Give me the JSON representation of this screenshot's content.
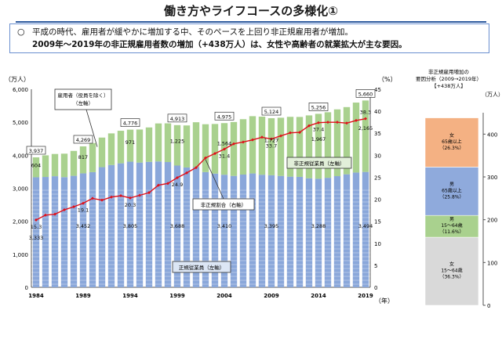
{
  "page": {
    "title": "働き方やライフコースの多様化①",
    "summary_bullet": "○",
    "summary_line1": "平成の時代、雇用者が緩やかに増加する中、そのペースを上回り非正規雇用者が増加。",
    "summary_line2": "2009年～2019年の非正規雇用者数の増加（+438万人）は、女性や高齢者の就業拡大が主な要因。"
  },
  "chart_data": [
    {
      "type": "bar",
      "stacked": true,
      "secondary_type": "line",
      "unit_left": "（万人）",
      "unit_right": "（%）",
      "year_unit": "（年）",
      "x": [
        1984,
        1985,
        1986,
        1987,
        1988,
        1989,
        1990,
        1991,
        1992,
        1993,
        1994,
        1995,
        1996,
        1997,
        1998,
        1999,
        2000,
        2001,
        2002,
        2003,
        2004,
        2005,
        2006,
        2007,
        2008,
        2009,
        2010,
        2011,
        2012,
        2013,
        2014,
        2015,
        2016,
        2017,
        2018,
        2019
      ],
      "x_tick_labels": [
        "1984",
        "1989",
        "1994",
        "1999",
        "2004",
        "2009",
        "2014",
        "2019"
      ],
      "x_tick_years": [
        1984,
        1989,
        1994,
        1999,
        2004,
        2009,
        2014,
        2019
      ],
      "y_left_ticks": [
        "0",
        "1,000",
        "2,000",
        "3,000",
        "4,000",
        "5,000",
        "6,000"
      ],
      "y_right_ticks": [
        "0",
        "5",
        "10",
        "15",
        "20",
        "25",
        "30",
        "35",
        "40",
        "45"
      ],
      "ylim_left": [
        0,
        6000
      ],
      "ylim_right": [
        0,
        45
      ],
      "grid": false,
      "series": [
        {
          "name": "正規従業員（左軸）",
          "color": "#8aa7da",
          "values": [
            3333,
            3343,
            3365,
            3337,
            3377,
            3452,
            3488,
            3639,
            3705,
            3756,
            3805,
            3779,
            3800,
            3812,
            3794,
            3688,
            3630,
            3640,
            3489,
            3444,
            3410,
            3374,
            3415,
            3449,
            3410,
            3395,
            3374,
            3352,
            3345,
            3302,
            3288,
            3317,
            3367,
            3423,
            3476,
            3494
          ]
        },
        {
          "name": "非正規従業員（左軸）",
          "color": "#a9d18e",
          "values": [
            604,
            655,
            674,
            711,
            755,
            817,
            881,
            897,
            958,
            986,
            971,
            1001,
            1043,
            1152,
            1173,
            1225,
            1273,
            1360,
            1451,
            1504,
            1564,
            1634,
            1678,
            1735,
            1760,
            1727,
            1763,
            1812,
            1816,
            1906,
            1967,
            1986,
            2023,
            2036,
            2120,
            2165
          ]
        }
      ],
      "line_series": {
        "name": "非正規割合（右軸）",
        "color": "#e0101a",
        "values": [
          15.3,
          16.4,
          16.6,
          17.6,
          18.3,
          19.1,
          20.2,
          19.8,
          20.5,
          20.8,
          20.3,
          20.9,
          21.5,
          23.2,
          23.6,
          24.9,
          26.0,
          27.2,
          29.4,
          30.4,
          31.4,
          32.6,
          33.0,
          33.5,
          34.1,
          33.7,
          34.4,
          35.1,
          35.2,
          36.7,
          37.4,
          37.5,
          37.5,
          37.3,
          37.9,
          38.3
        ]
      },
      "total_labels": [
        {
          "year": 1984,
          "text": "3,937"
        },
        {
          "year": 1989,
          "text": "4,269"
        },
        {
          "year": 1994,
          "text": "4,776"
        },
        {
          "year": 1999,
          "text": "4,913"
        },
        {
          "year": 2004,
          "text": "4,975"
        },
        {
          "year": 2009,
          "text": "5,124"
        },
        {
          "year": 2014,
          "text": "5,256"
        },
        {
          "year": 2019,
          "text": "5,660"
        }
      ],
      "regular_labels": [
        {
          "year": 1984,
          "text": "3,333"
        },
        {
          "year": 1989,
          "text": "3,452"
        },
        {
          "year": 1994,
          "text": "3,805"
        },
        {
          "year": 1999,
          "text": "3,688"
        },
        {
          "year": 2004,
          "text": "3,410"
        },
        {
          "year": 2009,
          "text": "3,395"
        },
        {
          "year": 2014,
          "text": "3,288"
        },
        {
          "year": 2019,
          "text": "3,494"
        }
      ],
      "nonregular_labels": [
        {
          "year": 1984,
          "text": "604"
        },
        {
          "year": 1989,
          "text": "817"
        },
        {
          "year": 1994,
          "text": "971"
        },
        {
          "year": 1999,
          "text": "1,225"
        },
        {
          "year": 2004,
          "text": "1,564"
        },
        {
          "year": 2009,
          "text": "1,727"
        },
        {
          "year": 2014,
          "text": "1,967"
        },
        {
          "year": 2019,
          "text": "2,165"
        }
      ],
      "ratio_labels": [
        {
          "year": 1984,
          "text": "15.3"
        },
        {
          "year": 1989,
          "text": "19.1"
        },
        {
          "year": 1994,
          "text": "20.3"
        },
        {
          "year": 1999,
          "text": "24.9"
        },
        {
          "year": 2004,
          "text": "31.4"
        },
        {
          "year": 2009,
          "text": "33.7"
        },
        {
          "year": 2014,
          "text": "37.4"
        },
        {
          "year": 2019,
          "text": "38.3"
        }
      ],
      "annotations": {
        "employees": "雇用者（役員を除く）（左軸）",
        "nonregular": "非正規従業員（左軸）",
        "ratio": "非正規割合（右軸）",
        "regular": "正規従業員（左軸）"
      }
    },
    {
      "type": "bar",
      "stacked": true,
      "title_line1": "非正規雇用増加の",
      "title_line2": "要因分析（2009→2019年）",
      "title_line3": "【+438万人】",
      "unit": "（万人）",
      "ylim": [
        0,
        450
      ],
      "y_ticks": [
        "0",
        "100",
        "200",
        "300",
        "400"
      ],
      "segments": [
        {
          "line1": "女",
          "line2": "15～64歳",
          "pct": "（36.3%）",
          "value": 159,
          "color": "#d9d9d9"
        },
        {
          "line1": "男",
          "line2": "15～64歳",
          "pct": "（11.6%）",
          "value": 51,
          "color": "#a9d18e"
        },
        {
          "line1": "男",
          "line2": "65歳以上",
          "pct": "（25.8%）",
          "value": 113,
          "color": "#8faadc"
        },
        {
          "line1": "女",
          "line2": "65歳以上",
          "pct": "（26.3%）",
          "value": 115,
          "color": "#f4b183"
        }
      ]
    }
  ]
}
